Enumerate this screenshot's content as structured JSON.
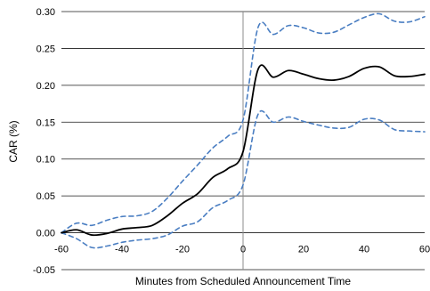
{
  "chart_data": {
    "type": "line",
    "title": "",
    "xlabel": "Minutes from Scheduled Announcement Time",
    "ylabel": "CAR (%)",
    "xlim": [
      -60,
      60
    ],
    "ylim": [
      -0.05,
      0.3
    ],
    "x_ticks": [
      -60,
      -40,
      -20,
      0,
      20,
      40,
      60
    ],
    "y_ticks": [
      -0.05,
      0.0,
      0.05,
      0.1,
      0.15,
      0.2,
      0.25,
      0.3
    ],
    "x_tick_labels": [
      "-60",
      "-40",
      "-20",
      "0",
      "20",
      "40",
      "60"
    ],
    "y_tick_labels": [
      "-0.05",
      "0.00",
      "0.05",
      "0.10",
      "0.15",
      "0.20",
      "0.25",
      "0.30"
    ],
    "grid": "horizontal",
    "legend": "none",
    "vertical_reference_line_x": 0,
    "series": [
      {
        "style": "solid",
        "color": "#000000",
        "x": [
          -60,
          -55,
          -50,
          -45,
          -40,
          -35,
          -30,
          -25,
          -20,
          -15,
          -10,
          -5,
          0,
          5,
          10,
          15,
          20,
          25,
          30,
          35,
          40,
          45,
          50,
          55,
          60
        ],
        "y": [
          0.0,
          0.004,
          -0.003,
          -0.001,
          0.005,
          0.007,
          0.01,
          0.023,
          0.04,
          0.053,
          0.075,
          0.087,
          0.11,
          0.222,
          0.211,
          0.22,
          0.215,
          0.209,
          0.207,
          0.212,
          0.223,
          0.225,
          0.213,
          0.212,
          0.215
        ]
      },
      {
        "style": "dashed",
        "color": "#4a7ec2",
        "x": [
          -60,
          -55,
          -50,
          -45,
          -40,
          -35,
          -30,
          -25,
          -20,
          -15,
          -10,
          -5,
          0,
          5,
          10,
          15,
          20,
          25,
          30,
          35,
          40,
          45,
          50,
          55,
          60
        ],
        "y": [
          0.0,
          0.013,
          0.01,
          0.017,
          0.022,
          0.023,
          0.029,
          0.047,
          0.07,
          0.092,
          0.115,
          0.131,
          0.153,
          0.279,
          0.269,
          0.281,
          0.278,
          0.271,
          0.272,
          0.282,
          0.292,
          0.297,
          0.287,
          0.286,
          0.293
        ]
      },
      {
        "style": "dashed",
        "color": "#4a7ec2",
        "x": [
          -60,
          -55,
          -50,
          -45,
          -40,
          -35,
          -30,
          -25,
          -20,
          -15,
          -10,
          -5,
          0,
          5,
          10,
          15,
          20,
          25,
          30,
          35,
          40,
          45,
          50,
          55,
          60
        ],
        "y": [
          0.0,
          -0.008,
          -0.02,
          -0.018,
          -0.013,
          -0.01,
          -0.008,
          -0.003,
          0.009,
          0.015,
          0.034,
          0.044,
          0.065,
          0.161,
          0.15,
          0.157,
          0.151,
          0.146,
          0.142,
          0.143,
          0.154,
          0.153,
          0.14,
          0.138,
          0.137
        ]
      }
    ]
  }
}
